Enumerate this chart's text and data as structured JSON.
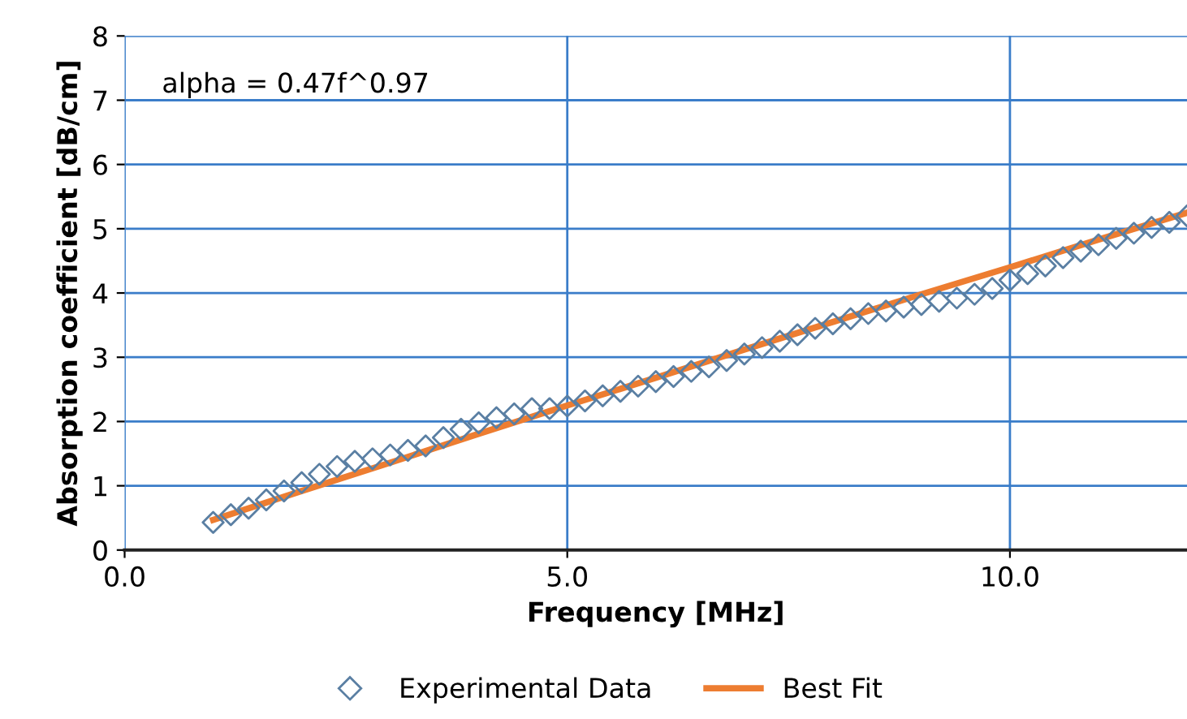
{
  "chart_data": {
    "type": "scatter",
    "xlabel": "Frequency [MHz]",
    "ylabel": "Absorption coefficient [dB/cm]",
    "annotations": [
      "alpha = 0.47f^0.97"
    ],
    "xlim": [
      0,
      12
    ],
    "ylim": [
      0,
      8
    ],
    "xticks": [
      {
        "value": 0,
        "label": "0.0"
      },
      {
        "value": 5,
        "label": "5.0"
      },
      {
        "value": 10,
        "label": "10.0"
      }
    ],
    "yticks": [
      0,
      1,
      2,
      3,
      4,
      5,
      6,
      7,
      8
    ],
    "grid": true,
    "legend": "bottom",
    "series": [
      {
        "name": "Experimental Data",
        "marker": "diamond",
        "color": "#5a7fa3",
        "x": [
          1.0,
          1.2,
          1.4,
          1.6,
          1.8,
          2.0,
          2.2,
          2.4,
          2.6,
          2.8,
          3.0,
          3.2,
          3.4,
          3.6,
          3.8,
          4.0,
          4.2,
          4.4,
          4.6,
          4.8,
          5.0,
          5.2,
          5.4,
          5.6,
          5.8,
          6.0,
          6.2,
          6.4,
          6.6,
          6.8,
          7.0,
          7.2,
          7.4,
          7.6,
          7.8,
          8.0,
          8.2,
          8.4,
          8.6,
          8.8,
          9.0,
          9.2,
          9.4,
          9.6,
          9.8,
          10.0,
          10.2,
          10.4,
          10.6,
          10.8,
          11.0,
          11.2,
          11.4,
          11.6,
          11.8,
          12.0
        ],
        "values": [
          0.43,
          0.55,
          0.65,
          0.78,
          0.92,
          1.05,
          1.18,
          1.3,
          1.38,
          1.42,
          1.48,
          1.55,
          1.62,
          1.75,
          1.88,
          1.98,
          2.06,
          2.12,
          2.2,
          2.2,
          2.24,
          2.32,
          2.4,
          2.47,
          2.55,
          2.62,
          2.7,
          2.78,
          2.85,
          2.95,
          3.05,
          3.15,
          3.25,
          3.35,
          3.45,
          3.52,
          3.6,
          3.68,
          3.72,
          3.78,
          3.82,
          3.87,
          3.92,
          3.98,
          4.07,
          4.2,
          4.3,
          4.42,
          4.55,
          4.65,
          4.75,
          4.85,
          4.93,
          5.02,
          5.1,
          5.2
        ]
      },
      {
        "name": "Best Fit",
        "type": "line",
        "marker": "none",
        "line_style": "solid",
        "color": "#ed7d31",
        "x": [
          1,
          2,
          3,
          4,
          5,
          6,
          7,
          8,
          9,
          10,
          11,
          12
        ],
        "values": [
          0.47,
          0.92,
          1.36,
          1.81,
          2.25,
          2.68,
          3.12,
          3.55,
          3.98,
          4.4,
          4.83,
          5.25
        ]
      }
    ]
  }
}
